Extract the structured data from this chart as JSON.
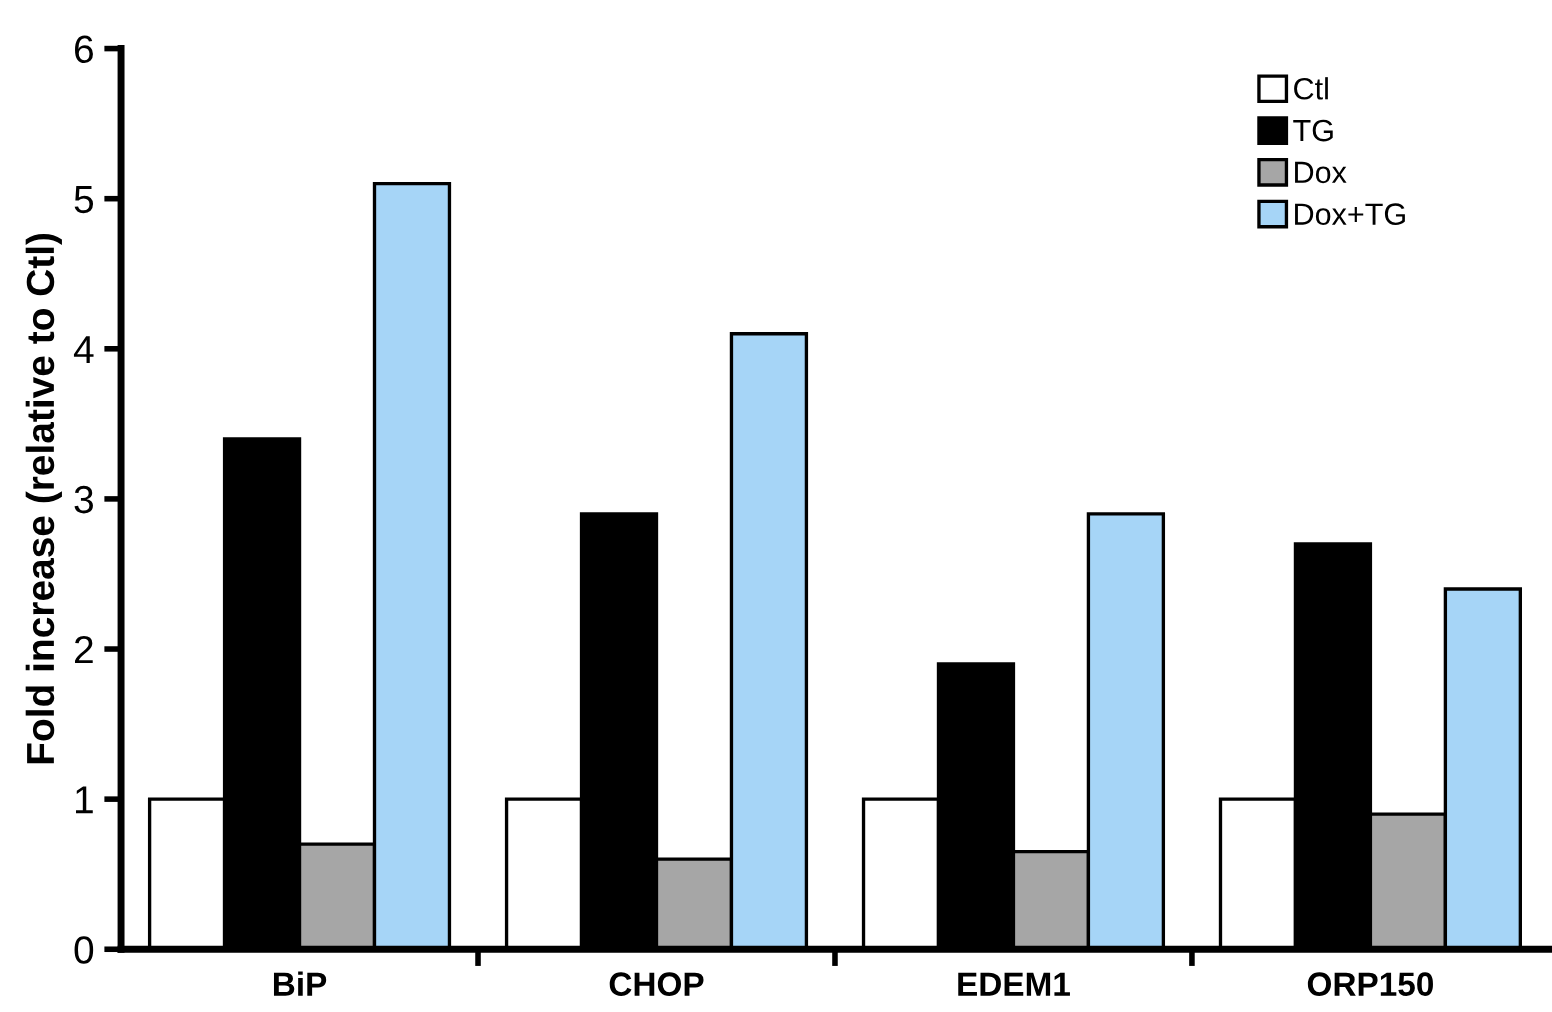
{
  "chart_data": {
    "type": "bar",
    "ylabel": "Fold increase (relative to Ctl)",
    "categories": [
      "BiP",
      "CHOP",
      "EDEM1",
      "ORP150"
    ],
    "series": [
      {
        "name": "Ctl",
        "color": "#ffffff",
        "values": [
          1,
          1,
          1,
          1
        ]
      },
      {
        "name": "TG",
        "color": "#000000",
        "values": [
          3.4,
          2.9,
          1.9,
          2.7
        ]
      },
      {
        "name": "Dox",
        "color": "#a6a6a6",
        "values": [
          0.7,
          0.6,
          0.65,
          0.9
        ]
      },
      {
        "name": "Dox+TG",
        "color": "#a6d5f7",
        "values": [
          5.1,
          4.1,
          2.9,
          2.4
        ]
      }
    ],
    "ylim": [
      0,
      6
    ],
    "yticks": [
      0,
      1,
      2,
      3,
      4,
      5,
      6
    ],
    "grid": false,
    "legend": "top right"
  }
}
